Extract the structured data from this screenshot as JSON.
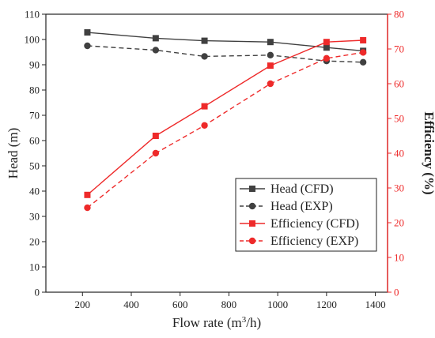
{
  "chart_data": {
    "type": "line",
    "x": [
      220,
      500,
      700,
      970,
      1200,
      1350
    ],
    "xlabel_main": "Flow rate (m",
    "xlabel_sup": "3",
    "xlabel_tail": "/h)",
    "xlim": [
      50,
      1450
    ],
    "xticks": [
      200,
      400,
      600,
      800,
      1000,
      1200,
      1400
    ],
    "ylabel_left": "Head (m)",
    "ylim_left": [
      0,
      110
    ],
    "yticks_left": [
      0,
      10,
      20,
      30,
      40,
      50,
      60,
      70,
      80,
      90,
      100,
      110
    ],
    "ylabel_right": "Efficiency (%)",
    "ylim_right": [
      0,
      80
    ],
    "yticks_right": [
      0,
      10,
      20,
      30,
      40,
      50,
      60,
      70,
      80
    ],
    "grid": false,
    "legend_position": "bottom-right",
    "series": [
      {
        "name": "Head (CFD)",
        "axis": "left",
        "values": [
          102.8,
          100.5,
          99.5,
          99.0,
          96.8,
          95.5
        ],
        "color": "#404040",
        "dash": "solid",
        "marker": "square"
      },
      {
        "name": "Head (EXP)",
        "axis": "left",
        "values": [
          97.5,
          95.8,
          93.3,
          93.8,
          91.5,
          91.0
        ],
        "color": "#404040",
        "dash": "dashed",
        "marker": "circle"
      },
      {
        "name": "Efficiency (CFD)",
        "axis": "right",
        "values": [
          28.0,
          45.0,
          53.5,
          65.2,
          72.0,
          72.5
        ],
        "color": "#ee2a2a",
        "dash": "solid",
        "marker": "square"
      },
      {
        "name": "Efficiency (EXP)",
        "axis": "right",
        "values": [
          24.3,
          40.0,
          48.0,
          60.0,
          67.3,
          69.0
        ],
        "color": "#ee2a2a",
        "dash": "dashed",
        "marker": "circle"
      }
    ]
  }
}
